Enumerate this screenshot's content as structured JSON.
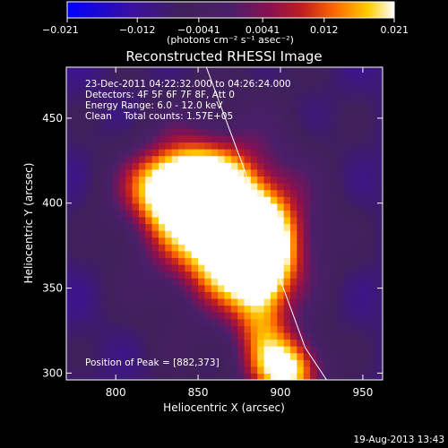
{
  "chart_data": {
    "type": "heatmap",
    "title": "Reconstructed RHESSI Image",
    "xlabel": "Heliocentric X (arcsec)",
    "ylabel": "Heliocentric Y (arcsec)",
    "xlim": [
      770,
      962
    ],
    "ylim": [
      296,
      480
    ],
    "x_ticks": [
      800,
      850,
      900,
      950
    ],
    "y_ticks": [
      300,
      350,
      400,
      450
    ],
    "colorbar": {
      "range": [
        -0.021,
        0.021
      ],
      "tick_values": [
        -0.021,
        -0.012,
        -0.0041,
        0.0041,
        0.012,
        0.021
      ],
      "tick_labels": [
        "−0.021",
        "−0.012",
        "−0.0041",
        "0.0041",
        "0.012",
        "0.021"
      ],
      "units_text": "(photons cm⁻² s⁻¹ asec⁻²)"
    },
    "annotations": {
      "time_range": "23-Dec-2011 04:22:32.000 to 04:26:24.000",
      "detectors": "Detectors: 4F 5F 6F 7F 8F, Att 0",
      "energy_range": "Energy Range: 6.0 - 12.0 keV",
      "method_counts": "Clean    Total counts: 1.57E+05",
      "peak": "Position of Peak = [882,373]"
    },
    "sources": [
      {
        "x": 840,
        "y": 410,
        "peak": 0.021
      },
      {
        "x": 882,
        "y": 373,
        "peak": 0.021
      },
      {
        "x": 862,
        "y": 392,
        "peak": 0.016
      },
      {
        "x": 905,
        "y": 302,
        "peak": 0.019
      },
      {
        "x": 888,
        "y": 335,
        "peak": 0.007
      }
    ],
    "background": -0.009,
    "limb_curve": [
      [
        855,
        480
      ],
      [
        878,
        420
      ],
      [
        898,
        360
      ],
      [
        915,
        315
      ],
      [
        928,
        296
      ]
    ],
    "grid": false
  },
  "footer": {
    "timestamp": "19-Aug-2013 13:43"
  }
}
